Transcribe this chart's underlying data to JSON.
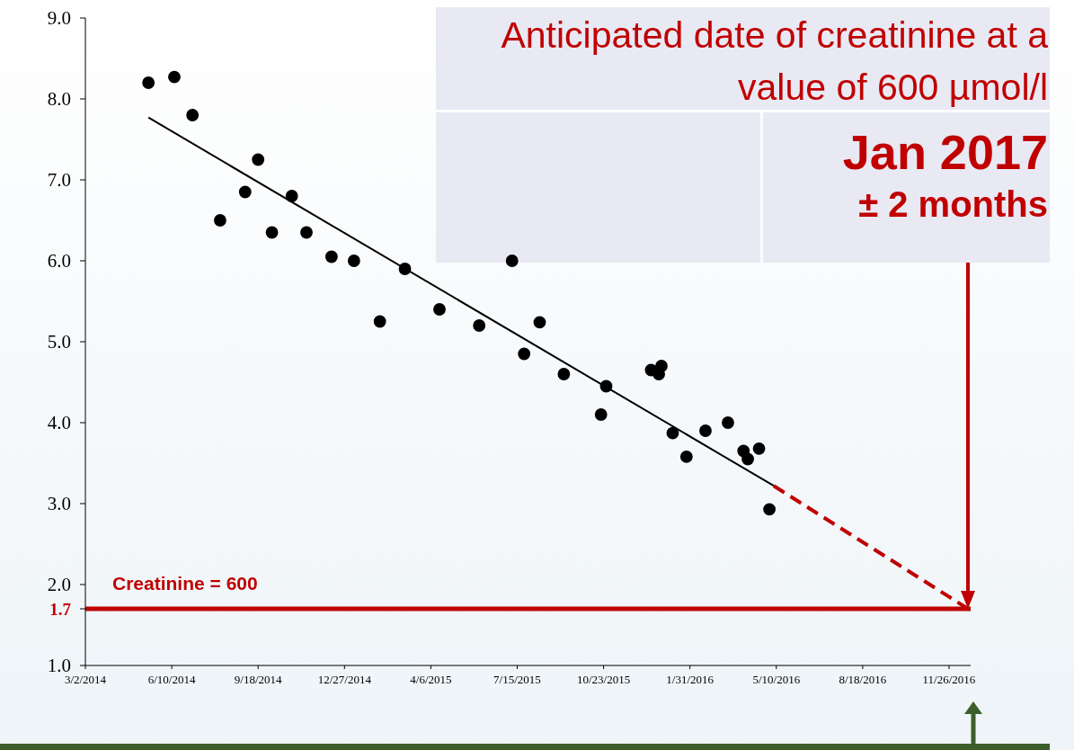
{
  "chart_data": {
    "type": "scatter",
    "xlim": [
      "2014-03-02",
      "2016-12-21"
    ],
    "xticks": [
      {
        "value": "2014-03-02",
        "label": "3/2/2014"
      },
      {
        "value": "2014-06-10",
        "label": "6/10/2014"
      },
      {
        "value": "2014-09-18",
        "label": "9/18/2014"
      },
      {
        "value": "2014-12-27",
        "label": "12/27/2014"
      },
      {
        "value": "2015-04-06",
        "label": "4/6/2015"
      },
      {
        "value": "2015-07-15",
        "label": "7/15/2015"
      },
      {
        "value": "2015-10-23",
        "label": "10/23/2015"
      },
      {
        "value": "2016-01-31",
        "label": "1/31/2016"
      },
      {
        "value": "2016-05-10",
        "label": "5/10/2016"
      },
      {
        "value": "2016-08-18",
        "label": "8/18/2016"
      },
      {
        "value": "2016-11-26",
        "label": "11/26/2016"
      }
    ],
    "ylim": [
      1,
      9
    ],
    "yticks": [
      {
        "value": 1,
        "label": "1.0"
      },
      {
        "value": 1.7,
        "label": "1.7"
      },
      {
        "value": 2,
        "label": "2.0"
      },
      {
        "value": 3,
        "label": "3.0"
      },
      {
        "value": 4,
        "label": "4.0"
      },
      {
        "value": 5,
        "label": "5.0"
      },
      {
        "value": 6,
        "label": "6.0"
      },
      {
        "value": 7,
        "label": "7.0"
      },
      {
        "value": 8,
        "label": "8.0"
      },
      {
        "value": 9,
        "label": "9.0"
      }
    ],
    "series": [
      {
        "type": "scatter",
        "color": "#000000",
        "marker": "circle",
        "x": [
          "2014-05-14",
          "2014-06-13",
          "2014-07-04",
          "2014-08-05",
          "2014-09-03",
          "2014-09-18",
          "2014-10-04",
          "2014-10-27",
          "2014-11-13",
          "2014-12-12",
          "2015-01-07",
          "2015-02-06",
          "2015-03-07",
          "2015-04-16",
          "2015-06-01",
          "2015-07-09",
          "2015-07-23",
          "2015-08-10",
          "2015-09-07",
          "2015-10-20",
          "2015-10-26",
          "2015-12-17",
          "2015-12-26",
          "2015-12-29",
          "2016-01-11",
          "2016-01-27",
          "2016-02-18",
          "2016-03-15",
          "2016-04-02",
          "2016-04-07",
          "2016-04-20",
          "2016-05-02"
        ],
        "values": [
          8.2,
          8.27,
          7.8,
          6.5,
          6.85,
          7.25,
          6.35,
          6.8,
          6.35,
          6.05,
          6.0,
          5.25,
          5.9,
          5.4,
          5.2,
          6.0,
          4.85,
          5.24,
          4.6,
          4.1,
          4.45,
          4.65,
          4.6,
          4.7,
          3.87,
          3.58,
          3.9,
          4.0,
          3.65,
          3.55,
          3.68,
          2.93
        ]
      },
      {
        "type": "line",
        "color": "#000000",
        "line_style": "solid",
        "x": [
          "2014-05-14",
          "2016-05-07"
        ],
        "values": [
          7.77,
          3.22
        ]
      },
      {
        "type": "line",
        "color": "#c00000",
        "line_style": "dashed",
        "x": [
          "2016-05-07",
          "2016-12-18"
        ],
        "values": [
          3.22,
          1.7
        ]
      }
    ],
    "ref_lines": [
      {
        "axis": "y",
        "value": 1.7,
        "color": "#c00000"
      }
    ],
    "annotations": [
      "Anticipated date of creatinine at a value of 600 µmol/l",
      "Jan 2017",
      "± 2 months",
      {
        "text": "Creatinine = 600",
        "y": 1.7
      }
    ]
  }
}
